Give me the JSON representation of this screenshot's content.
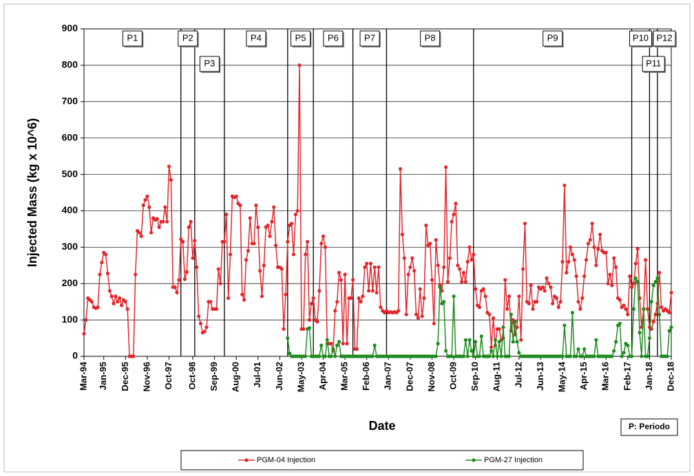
{
  "chart_data": {
    "type": "line",
    "ylabel": "Injected Mass (kg x 10^6)",
    "xlabel": "Date",
    "note": "P: Periodo",
    "x": [
      "Mar-94",
      "Apr-94",
      "May-94",
      "Jun-94",
      "Jul-94",
      "Aug-94",
      "Sep-94",
      "Oct-94",
      "Nov-94",
      "Dec-94",
      "Jan-95",
      "Feb-95",
      "Mar-95",
      "Apr-95",
      "May-95",
      "Jun-95",
      "Jul-95",
      "Aug-95",
      "Sep-95",
      "Oct-95",
      "Nov-95",
      "Dec-95",
      "Jan-96",
      "Feb-96",
      "Mar-96",
      "Apr-96",
      "May-96",
      "Jun-96",
      "Jul-96",
      "Aug-96",
      "Sep-96",
      "Oct-96",
      "Nov-96",
      "Dec-96",
      "Jan-97",
      "Feb-97",
      "Mar-97",
      "Apr-97",
      "May-97",
      "Jun-97",
      "Jul-97",
      "Aug-97",
      "Sep-97",
      "Oct-97",
      "Nov-97",
      "Dec-97",
      "Jan-98",
      "Feb-98",
      "Mar-98",
      "Apr-98",
      "May-98",
      "Jun-98",
      "Jul-98",
      "Aug-98",
      "Sep-98",
      "Oct-98",
      "Nov-98",
      "Dec-98",
      "Jan-99",
      "Feb-99",
      "Mar-99",
      "Apr-99",
      "May-99",
      "Jun-99",
      "Jul-99",
      "Aug-99",
      "Sep-99",
      "Oct-99",
      "Nov-99",
      "Dec-99",
      "Jan-00",
      "Feb-00",
      "Mar-00",
      "Apr-00",
      "May-00",
      "Jun-00",
      "Jul-00",
      "Aug-00",
      "Sep-00",
      "Oct-00",
      "Nov-00",
      "Dec-00",
      "Jan-01",
      "Feb-01",
      "Mar-01",
      "Apr-01",
      "May-01",
      "Jun-01",
      "Jul-01",
      "Aug-01",
      "Sep-01",
      "Oct-01",
      "Nov-01",
      "Dec-01",
      "Jan-02",
      "Feb-02",
      "Mar-02",
      "Apr-02",
      "May-02",
      "Jun-02",
      "Jul-02",
      "Aug-02",
      "Sep-02",
      "Oct-02",
      "Nov-02",
      "Dec-02",
      "Jan-03",
      "Feb-03",
      "Mar-03",
      "Apr-03",
      "May-03",
      "Jun-03",
      "Jul-03",
      "Aug-03",
      "Sep-03",
      "Oct-03",
      "Nov-03",
      "Dec-03",
      "Jan-04",
      "Feb-04",
      "Mar-04",
      "Apr-04",
      "May-04",
      "Jun-04",
      "Jul-04",
      "Aug-04",
      "Sep-04",
      "Oct-04",
      "Nov-04",
      "Dec-04",
      "Jan-05",
      "Feb-05",
      "Mar-05",
      "Apr-05",
      "May-05",
      "Jun-05",
      "Jul-05",
      "Aug-05",
      "Sep-05",
      "Oct-05",
      "Nov-05",
      "Dec-05",
      "Jan-06",
      "Feb-06",
      "Mar-06",
      "Apr-06",
      "May-06",
      "Jun-06",
      "Jul-06",
      "Aug-06",
      "Sep-06",
      "Oct-06",
      "Nov-06",
      "Dec-06",
      "Jan-07",
      "Feb-07",
      "Mar-07",
      "Apr-07",
      "May-07",
      "Jun-07",
      "Jul-07",
      "Aug-07",
      "Sep-07",
      "Oct-07",
      "Nov-07",
      "Dec-07",
      "Jan-08",
      "Feb-08",
      "Mar-08",
      "Apr-08",
      "May-08",
      "Jun-08",
      "Jul-08",
      "Aug-08",
      "Sep-08",
      "Oct-08",
      "Nov-08",
      "Dec-08",
      "Jan-09",
      "Feb-09",
      "Mar-09",
      "Apr-09",
      "May-09",
      "Jun-09",
      "Jul-09",
      "Aug-09",
      "Sep-09",
      "Oct-09",
      "Nov-09",
      "Dec-09",
      "Jan-10",
      "Feb-10",
      "Mar-10",
      "Apr-10",
      "May-10",
      "Jun-10",
      "Jul-10",
      "Aug-10",
      "Sep-10",
      "Oct-10",
      "Nov-10",
      "Dec-10",
      "Jan-11",
      "Feb-11",
      "Mar-11",
      "Apr-11",
      "May-11",
      "Jun-11",
      "Jul-11",
      "Aug-11",
      "Sep-11",
      "Oct-11",
      "Nov-11",
      "Dec-11",
      "Jan-12",
      "Feb-12",
      "Mar-12",
      "Apr-12",
      "May-12",
      "Jun-12",
      "Jul-12",
      "Aug-12",
      "Sep-12",
      "Oct-12",
      "Nov-12",
      "Dec-12",
      "Jan-13",
      "Feb-13",
      "Mar-13",
      "Apr-13",
      "May-13",
      "Jun-13",
      "Jul-13",
      "Aug-13",
      "Sep-13",
      "Oct-13",
      "Nov-13",
      "Dec-13",
      "Jan-14",
      "Feb-14",
      "Mar-14",
      "Apr-14",
      "May-14",
      "Jun-14",
      "Jul-14",
      "Aug-14",
      "Sep-14",
      "Oct-14",
      "Nov-14",
      "Dec-14",
      "Jan-15",
      "Feb-15",
      "Mar-15",
      "Apr-15",
      "May-15",
      "Jun-15",
      "Jul-15",
      "Aug-15",
      "Sep-15",
      "Oct-15",
      "Nov-15",
      "Dec-15",
      "Jan-16",
      "Feb-16",
      "Mar-16",
      "Apr-16",
      "May-16",
      "Jun-16",
      "Jul-16",
      "Aug-16",
      "Sep-16",
      "Oct-16",
      "Nov-16",
      "Dec-16",
      "Jan-17",
      "Feb-17",
      "Mar-17",
      "Apr-17",
      "May-17",
      "Jun-17",
      "Jul-17",
      "Aug-17",
      "Sep-17",
      "Oct-17",
      "Nov-17",
      "Dec-17",
      "Jan-18",
      "Feb-18",
      "Mar-18",
      "Apr-18",
      "May-18",
      "Jun-18",
      "Jul-18",
      "Aug-18",
      "Sep-18",
      "Oct-18",
      "Nov-18",
      "Dec-18"
    ],
    "series": [
      {
        "name": "PGM-04 Injection",
        "color": "#e3262b",
        "values": [
          62,
          100,
          160,
          155,
          150,
          135,
          132,
          135,
          225,
          258,
          285,
          280,
          228,
          180,
          165,
          145,
          165,
          150,
          160,
          140,
          155,
          150,
          130,
          0,
          0,
          0,
          225,
          345,
          340,
          330,
          415,
          430,
          440,
          410,
          340,
          380,
          375,
          378,
          355,
          370,
          370,
          410,
          370,
          522,
          485,
          190,
          190,
          175,
          210,
          322,
          315,
          212,
          232,
          355,
          370,
          270,
          318,
          245,
          110,
          90,
          65,
          68,
          80,
          150,
          150,
          130,
          130,
          130,
          240,
          200,
          315,
          315,
          390,
          160,
          280,
          440,
          437,
          440,
          420,
          415,
          170,
          155,
          265,
          290,
          380,
          310,
          310,
          415,
          355,
          235,
          165,
          250,
          355,
          360,
          330,
          370,
          410,
          305,
          245,
          245,
          240,
          75,
          170,
          315,
          360,
          365,
          280,
          390,
          400,
          800,
          75,
          75,
          280,
          315,
          100,
          145,
          160,
          100,
          95,
          180,
          310,
          330,
          300,
          35,
          35,
          35,
          15,
          125,
          150,
          230,
          210,
          35,
          225,
          35,
          160,
          160,
          210,
          20,
          20,
          160,
          150,
          165,
          245,
          255,
          180,
          255,
          180,
          245,
          175,
          245,
          135,
          125,
          120,
          125,
          120,
          122,
          120,
          122,
          120,
          125,
          515,
          335,
          270,
          115,
          225,
          245,
          270,
          235,
          115,
          105,
          185,
          110,
          160,
          360,
          305,
          310,
          210,
          90,
          320,
          250,
          195,
          180,
          245,
          520,
          205,
          270,
          370,
          390,
          420,
          250,
          240,
          205,
          230,
          205,
          260,
          300,
          265,
          280,
          185,
          140,
          135,
          180,
          185,
          165,
          120,
          115,
          25,
          105,
          30,
          75,
          75,
          45,
          50,
          210,
          130,
          165,
          70,
          100,
          60,
          80,
          165,
          45,
          240,
          365,
          150,
          145,
          195,
          130,
          150,
          150,
          190,
          185,
          190,
          180,
          215,
          200,
          190,
          145,
          165,
          160,
          135,
          150,
          260,
          470,
          230,
          260,
          300,
          280,
          265,
          220,
          150,
          130,
          160,
          220,
          265,
          310,
          320,
          365,
          300,
          250,
          295,
          335,
          290,
          285,
          285,
          200,
          225,
          195,
          270,
          245,
          160,
          155,
          135,
          140,
          130,
          115,
          220,
          190,
          200,
          255,
          295,
          160,
          80,
          130,
          265,
          130,
          80,
          75,
          95,
          115,
          145,
          230,
          135,
          125,
          130,
          125,
          120,
          175
        ]
      },
      {
        "name": "PGM-27 Injection",
        "color": "#1e8c1e",
        "values": [
          null,
          null,
          null,
          null,
          null,
          null,
          null,
          null,
          null,
          null,
          null,
          null,
          null,
          null,
          null,
          null,
          null,
          null,
          null,
          null,
          null,
          null,
          null,
          null,
          null,
          null,
          null,
          null,
          null,
          null,
          null,
          null,
          null,
          null,
          null,
          null,
          null,
          null,
          null,
          null,
          null,
          null,
          null,
          null,
          null,
          null,
          null,
          null,
          null,
          null,
          null,
          null,
          null,
          null,
          null,
          null,
          null,
          null,
          null,
          null,
          null,
          null,
          null,
          null,
          null,
          null,
          null,
          null,
          null,
          null,
          null,
          null,
          null,
          null,
          null,
          null,
          null,
          null,
          null,
          null,
          null,
          null,
          null,
          null,
          null,
          null,
          null,
          null,
          null,
          null,
          null,
          null,
          null,
          null,
          null,
          null,
          null,
          null,
          null,
          null,
          null,
          null,
          null,
          50,
          8,
          0,
          0,
          0,
          0,
          0,
          0,
          0,
          0,
          75,
          78,
          0,
          0,
          0,
          0,
          0,
          30,
          0,
          0,
          45,
          0,
          0,
          20,
          0,
          30,
          40,
          0,
          0,
          0,
          0,
          0,
          0,
          0,
          0,
          0,
          0,
          0,
          0,
          0,
          0,
          0,
          0,
          0,
          30,
          0,
          0,
          0,
          0,
          0,
          0,
          0,
          0,
          0,
          0,
          0,
          0,
          0,
          0,
          0,
          0,
          0,
          0,
          0,
          0,
          0,
          0,
          0,
          0,
          0,
          0,
          0,
          0,
          0,
          0,
          0,
          35,
          190,
          145,
          150,
          15,
          0,
          0,
          0,
          165,
          0,
          0,
          0,
          0,
          0,
          45,
          0,
          45,
          15,
          0,
          40,
          0,
          0,
          55,
          0,
          0,
          0,
          0,
          15,
          0,
          45,
          0,
          40,
          0,
          80,
          0,
          0,
          0,
          115,
          40,
          95,
          40,
          10,
          0,
          0,
          0,
          0,
          0,
          0,
          0,
          0,
          0,
          0,
          0,
          0,
          0,
          0,
          0,
          0,
          0,
          0,
          0,
          0,
          0,
          0,
          85,
          0,
          0,
          0,
          120,
          0,
          0,
          20,
          0,
          0,
          20,
          0,
          0,
          0,
          0,
          0,
          45,
          0,
          0,
          0,
          0,
          0,
          0,
          0,
          0,
          15,
          40,
          85,
          90,
          0,
          10,
          35,
          30,
          0,
          0,
          130,
          215,
          205,
          65,
          0,
          130,
          0,
          0,
          50,
          150,
          195,
          205,
          215,
          115,
          0,
          0,
          0,
          0,
          70,
          80
        ]
      }
    ],
    "xlim": [
      "Mar-94",
      "Dec-18"
    ],
    "xticks": [
      "Mar-94",
      "Jan-95",
      "Dec-95",
      "Nov-96",
      "Oct-97",
      "Oct-98",
      "Sep-99",
      "Aug-00",
      "Jul-01",
      "Jun-02",
      "May-03",
      "Apr-04",
      "Mar-05",
      "Feb-06",
      "Jan-07",
      "Dec-07",
      "Nov-08",
      "Oct-09",
      "Sep-10",
      "Aug-11",
      "Jul-12",
      "Jun-13",
      "May-14",
      "Apr-15",
      "Mar-16",
      "Feb-17",
      "Jan-18",
      "Dec-18"
    ],
    "ylim": [
      0,
      900
    ],
    "yticks": [
      0,
      100,
      200,
      300,
      400,
      500,
      600,
      700,
      800,
      900
    ],
    "grid": true,
    "periods": [
      {
        "label": "P1",
        "end": "Apr-98"
      },
      {
        "label": "P2",
        "end": "Nov-98"
      },
      {
        "label": "P3",
        "end": "Feb-00"
      },
      {
        "label": "P4",
        "end": "Oct-02"
      },
      {
        "label": "P5",
        "end": "Nov-03"
      },
      {
        "label": "P6",
        "end": "Jul-05"
      },
      {
        "label": "P7",
        "end": "Dec-06"
      },
      {
        "label": "P8",
        "end": "Aug-10"
      },
      {
        "label": "P9",
        "end": "Apr-17"
      },
      {
        "label": "P10",
        "end": "Jan-18"
      },
      {
        "label": "P11",
        "end": "May-18"
      },
      {
        "label": "P12",
        "end": "Dec-18"
      }
    ]
  }
}
